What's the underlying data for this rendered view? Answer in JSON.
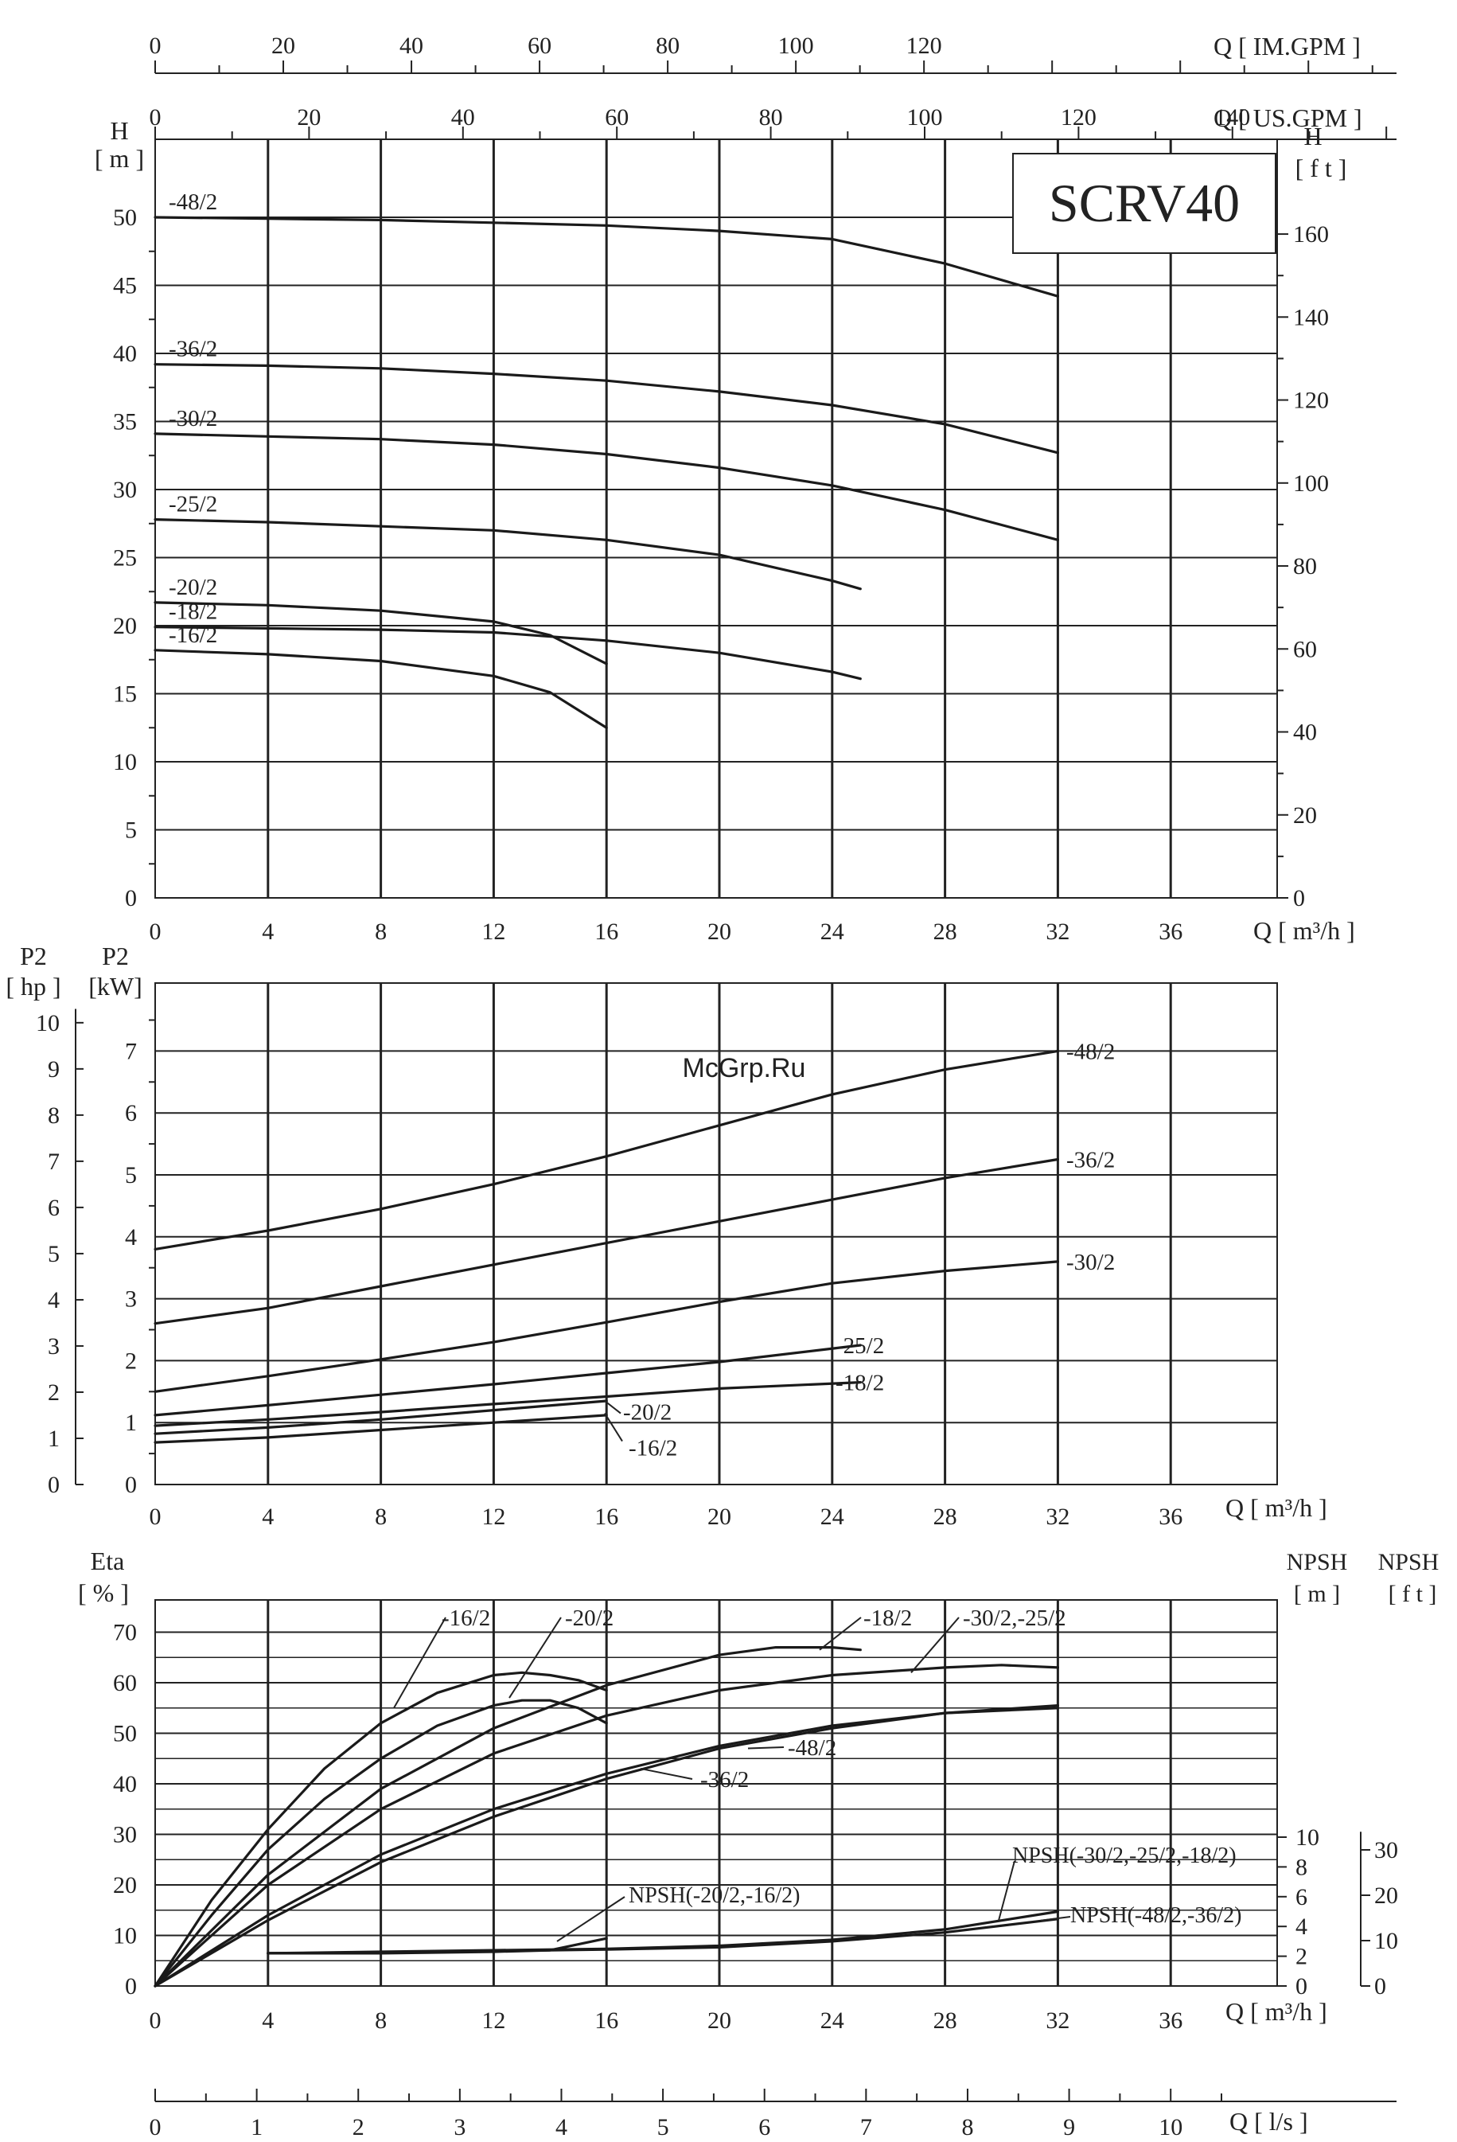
{
  "chart_data": [
    {
      "type": "line",
      "title": "SCRV40",
      "xlabel": "Q [ m³/h ]",
      "ylabel": "H [ m ]",
      "ylabel_right": "H [ f t ]",
      "xlim": [
        0,
        40
      ],
      "ylim": [
        0,
        55
      ],
      "xticks": [
        0,
        4,
        8,
        12,
        16,
        20,
        24,
        28,
        32,
        36
      ],
      "yticks": [
        0,
        5,
        10,
        15,
        20,
        25,
        30,
        35,
        40,
        45,
        50
      ],
      "yticks_right": [
        0,
        20,
        40,
        60,
        80,
        100,
        120,
        140,
        160
      ],
      "secondary_x_axes": [
        {
          "label": "Q [ IM.GPM ]",
          "ticks": [
            0,
            20,
            40,
            60,
            80,
            100,
            120
          ]
        },
        {
          "label": "Q [ US.GPM ]",
          "ticks": [
            0,
            20,
            40,
            60,
            80,
            100,
            120,
            140
          ]
        }
      ],
      "grid": true,
      "series": [
        {
          "name": "-48/2",
          "x": [
            0,
            4,
            8,
            12,
            16,
            20,
            24,
            28,
            32
          ],
          "y": [
            50,
            49.9,
            49.8,
            49.6,
            49.4,
            49.0,
            48.4,
            46.6,
            44.2
          ]
        },
        {
          "name": "-36/2",
          "x": [
            0,
            4,
            8,
            12,
            16,
            20,
            24,
            28,
            32
          ],
          "y": [
            39.2,
            39.1,
            38.9,
            38.5,
            38.0,
            37.2,
            36.2,
            34.8,
            32.7
          ]
        },
        {
          "name": "-30/2",
          "x": [
            0,
            4,
            8,
            12,
            16,
            20,
            24,
            28,
            32
          ],
          "y": [
            34.1,
            33.9,
            33.7,
            33.3,
            32.6,
            31.6,
            30.3,
            28.5,
            26.3
          ]
        },
        {
          "name": "-25/2",
          "x": [
            0,
            4,
            8,
            12,
            16,
            20,
            24,
            25
          ],
          "y": [
            27.8,
            27.6,
            27.3,
            27.0,
            26.3,
            25.2,
            23.3,
            22.7
          ]
        },
        {
          "name": "-20/2",
          "x": [
            0,
            4,
            8,
            12,
            14,
            16
          ],
          "y": [
            21.7,
            21.5,
            21.1,
            20.3,
            19.3,
            17.2
          ]
        },
        {
          "name": "-18/2",
          "x": [
            0,
            4,
            8,
            12,
            16,
            20,
            24,
            25
          ],
          "y": [
            19.9,
            19.8,
            19.7,
            19.5,
            18.9,
            18.0,
            16.6,
            16.1
          ]
        },
        {
          "name": "-16/2",
          "x": [
            0,
            4,
            8,
            12,
            14,
            16
          ],
          "y": [
            18.2,
            17.9,
            17.4,
            16.3,
            15.1,
            12.5
          ]
        }
      ]
    },
    {
      "type": "line",
      "xlabel": "Q [ m³/h ]",
      "ylabel": "P2 [kW]",
      "ylabel_left": "P2 [ hp ]",
      "xlim": [
        0,
        40
      ],
      "ylim": [
        0,
        8
      ],
      "xticks": [
        0,
        4,
        8,
        12,
        16,
        20,
        24,
        28,
        32,
        36
      ],
      "yticks": [
        0,
        1,
        2,
        3,
        4,
        5,
        6,
        7
      ],
      "yticks_hp": [
        0,
        1,
        2,
        3,
        4,
        5,
        6,
        7,
        8,
        9,
        10
      ],
      "grid": true,
      "series": [
        {
          "name": "-48/2",
          "x": [
            0,
            4,
            8,
            12,
            16,
            20,
            24,
            28,
            32
          ],
          "y": [
            3.8,
            4.1,
            4.45,
            4.85,
            5.3,
            5.8,
            6.3,
            6.7,
            7.0
          ]
        },
        {
          "name": "-36/2",
          "x": [
            0,
            4,
            8,
            12,
            16,
            20,
            24,
            28,
            32
          ],
          "y": [
            2.6,
            2.85,
            3.2,
            3.55,
            3.9,
            4.25,
            4.6,
            4.95,
            5.25
          ]
        },
        {
          "name": "-30/2",
          "x": [
            0,
            4,
            8,
            12,
            16,
            20,
            24,
            28,
            32
          ],
          "y": [
            1.5,
            1.75,
            2.02,
            2.3,
            2.62,
            2.95,
            3.25,
            3.45,
            3.6
          ]
        },
        {
          "name": "-25/2",
          "x": [
            0,
            4,
            8,
            12,
            16,
            20,
            25
          ],
          "y": [
            1.12,
            1.28,
            1.45,
            1.62,
            1.8,
            1.98,
            2.25
          ]
        },
        {
          "name": "-18/2",
          "x": [
            0,
            4,
            8,
            12,
            16,
            20,
            25
          ],
          "y": [
            0.95,
            1.05,
            1.17,
            1.3,
            1.42,
            1.55,
            1.65
          ]
        },
        {
          "name": "-20/2",
          "x": [
            0,
            4,
            8,
            12,
            16
          ],
          "y": [
            0.82,
            0.92,
            1.05,
            1.2,
            1.35
          ]
        },
        {
          "name": "-16/2",
          "x": [
            0,
            4,
            8,
            12,
            16
          ],
          "y": [
            0.68,
            0.76,
            0.88,
            1.0,
            1.12
          ]
        }
      ]
    },
    {
      "type": "line",
      "xlabel": "Q [ m³/h ]",
      "ylabel": "Eta [ % ]",
      "ylabel_right": "NPSH [ m ]",
      "ylabel_right2": "NPSH [ f t ]",
      "xlim": [
        0,
        40
      ],
      "ylim": [
        0,
        75
      ],
      "xticks": [
        0,
        4,
        8,
        12,
        16,
        20,
        24,
        28,
        32,
        36
      ],
      "yticks": [
        0,
        10,
        20,
        30,
        40,
        50,
        60,
        70
      ],
      "yticks_npsh_m": [
        0,
        2,
        4,
        6,
        8,
        10
      ],
      "yticks_npsh_ft": [
        0,
        10,
        20,
        30
      ],
      "secondary_x_axis": {
        "label": "Q [ l/s ]",
        "ticks": [
          0,
          1,
          2,
          3,
          4,
          5,
          6,
          7,
          8,
          9,
          10
        ]
      },
      "grid": true,
      "series": [
        {
          "name": "-16/2",
          "x": [
            0,
            2,
            4,
            6,
            8,
            10,
            12,
            13,
            14,
            15,
            16
          ],
          "y": [
            0,
            17,
            31,
            43,
            52,
            58,
            61.5,
            62,
            61.5,
            60.5,
            58.5
          ]
        },
        {
          "name": "-20/2",
          "x": [
            0,
            2,
            4,
            6,
            8,
            10,
            12,
            13,
            14,
            15,
            16
          ],
          "y": [
            0,
            14,
            27,
            37,
            45,
            51.5,
            55.5,
            56.5,
            56.5,
            55,
            52
          ]
        },
        {
          "name": "-18/2",
          "x": [
            0,
            4,
            8,
            12,
            16,
            20,
            22,
            24,
            25
          ],
          "y": [
            0,
            22,
            39,
            51,
            59.5,
            65.5,
            67,
            67,
            66.5
          ]
        },
        {
          "name": "-30/2,-25/2",
          "x": [
            0,
            4,
            8,
            12,
            16,
            20,
            24,
            28,
            30,
            32
          ],
          "y": [
            0,
            20,
            35,
            46,
            53.5,
            58.5,
            61.5,
            63,
            63.5,
            63
          ]
        },
        {
          "name": "-48/2",
          "x": [
            0,
            4,
            8,
            12,
            16,
            20,
            24,
            28,
            32
          ],
          "y": [
            0,
            14,
            26,
            35,
            42,
            47.5,
            51.5,
            54,
            55
          ]
        },
        {
          "name": "-36/2",
          "x": [
            0,
            4,
            8,
            12,
            16,
            20,
            24,
            28,
            32
          ],
          "y": [
            0,
            13,
            24.5,
            33.5,
            41,
            47,
            51,
            54,
            55.5
          ]
        },
        {
          "name": "NPSH(-20/2,-16/2)",
          "axis": "NPSH m",
          "x": [
            4,
            8,
            12,
            14,
            16
          ],
          "y": [
            2.2,
            2.2,
            2.3,
            2.4,
            3.2
          ]
        },
        {
          "name": "NPSH(-30/2,-25/2,-18/2)",
          "axis": "NPSH m",
          "x": [
            4,
            8,
            12,
            16,
            20,
            24,
            28,
            32
          ],
          "y": [
            2.2,
            2.3,
            2.4,
            2.5,
            2.7,
            3.1,
            3.8,
            5.0
          ]
        },
        {
          "name": "NPSH(-48/2,-36/2)",
          "axis": "NPSH m",
          "x": [
            4,
            8,
            12,
            16,
            20,
            24,
            28,
            32
          ],
          "y": [
            2.2,
            2.25,
            2.35,
            2.45,
            2.6,
            3.0,
            3.6,
            4.5
          ]
        }
      ]
    }
  ],
  "labels": {
    "q_im_gpm": "Q  [ IM.GPM ]",
    "q_us_gpm": "Q  [ US.GPM ]",
    "h_left": "H",
    "h_left_unit": "[ m ]",
    "h_right": "H",
    "h_right_unit": "[ f t ]",
    "model": "SCRV40",
    "q_m3h_top": "Q  [ m³/h ]",
    "p2_hp": "P2",
    "p2_hp_unit": "[ hp ]",
    "p2_kw": "P2",
    "p2_kw_unit": "[kW]",
    "watermark": "McGrp.Ru",
    "q_m3h_mid": "Q  [ m³/h ]",
    "eta": "Eta",
    "eta_unit": "[ % ]",
    "npsh_m": "NPSH",
    "npsh_m_unit": "[ m ]",
    "npsh_ft": "NPSH",
    "npsh_ft_unit": "[ f t ]",
    "q_m3h_bottom": "Q  [ m³/h ]",
    "q_ls": "Q  [ l/s ]"
  }
}
